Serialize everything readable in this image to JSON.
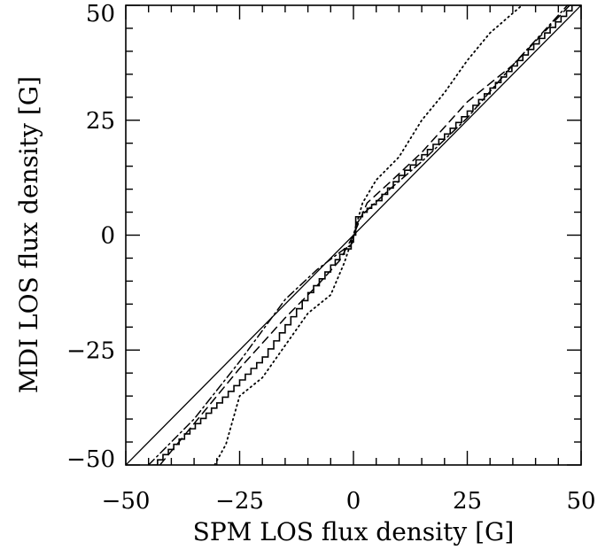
{
  "chart_data": {
    "type": "line",
    "xlabel": "SPM LOS flux density [G]",
    "ylabel": "MDI LOS flux density [G]",
    "xlim": [
      -50,
      50
    ],
    "ylim": [
      -50,
      50
    ],
    "xticks": [
      -50,
      -25,
      0,
      25,
      50
    ],
    "yticks": [
      -50,
      -25,
      0,
      25,
      50
    ],
    "xtick_labels": [
      "−50",
      "−25",
      "0",
      "25",
      "50"
    ],
    "ytick_labels": [
      "−50",
      "−25",
      "0",
      "25",
      "50"
    ],
    "minor_tick_step": 5,
    "grid": false,
    "series": [
      {
        "style": "solid-reference",
        "x": [
          -50,
          50
        ],
        "y": [
          -50,
          50
        ]
      },
      {
        "style": "solid-step",
        "x": [
          -44.2,
          -30,
          -20,
          -10,
          -5,
          -2,
          -0.5,
          0,
          0.5,
          2,
          5,
          10,
          20,
          30,
          48
        ],
        "y": [
          -50,
          -36.5,
          -26.5,
          -12.5,
          -6.5,
          -3,
          -1.5,
          0,
          4,
          5,
          7.5,
          13,
          22,
          32,
          50
        ]
      },
      {
        "style": "dash-dot",
        "x": [
          -45,
          -35,
          -25,
          -15,
          -8,
          -2,
          -0.3,
          0.5,
          2,
          8,
          15,
          25,
          35,
          47
        ],
        "y": [
          -50,
          -40,
          -27.5,
          -14,
          -7.5,
          -3,
          -2,
          2,
          4.5,
          10,
          16,
          25.5,
          37,
          50
        ]
      },
      {
        "style": "dashed",
        "x": [
          -42.5,
          -35,
          -25,
          -15,
          -8,
          -3,
          0,
          3,
          8,
          15,
          25,
          35,
          47.5
        ],
        "y": [
          -50,
          -41,
          -29,
          -18,
          -11,
          -5.5,
          0,
          7,
          11.5,
          18,
          29,
          37,
          50
        ]
      },
      {
        "style": "dotted",
        "x": [
          -30.5,
          -28,
          -25,
          -20,
          -15,
          -10,
          -5,
          -2,
          0,
          2,
          5,
          10,
          15,
          20,
          25,
          30,
          37
        ],
        "y": [
          -50,
          -45.5,
          -35,
          -31,
          -24,
          -17,
          -13,
          -6,
          0,
          7,
          12,
          17,
          25,
          31,
          38,
          44,
          50
        ]
      }
    ]
  }
}
